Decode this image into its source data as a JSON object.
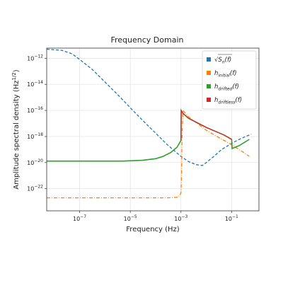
{
  "chart_data": {
    "type": "line",
    "title": "Frequency Domain",
    "xlabel": "Frequency (Hz)",
    "ylabel": "Amplitude spectral density (Hz",
    "ylabel_exponent": "1/2",
    "ylabel_suffix": ")",
    "x_scale": "log",
    "y_scale": "log",
    "xlim": [
      5e-09,
      1.2
    ],
    "ylim": [
      2e-24,
      6e-12
    ],
    "x_ticks": [
      {
        "value": 1e-07,
        "base": "10",
        "exp": "−7"
      },
      {
        "value": 1e-05,
        "base": "10",
        "exp": "−5"
      },
      {
        "value": 0.001,
        "base": "10",
        "exp": "−3"
      },
      {
        "value": 0.1,
        "base": "10",
        "exp": "−1"
      }
    ],
    "y_ticks": [
      {
        "value": 1e-12,
        "base": "10",
        "exp": "−12"
      },
      {
        "value": 1e-14,
        "base": "10",
        "exp": "−14"
      },
      {
        "value": 1e-16,
        "base": "10",
        "exp": "−16"
      },
      {
        "value": 1e-18,
        "base": "10",
        "exp": "−18"
      },
      {
        "value": 1e-20,
        "base": "10",
        "exp": "−20"
      },
      {
        "value": 1e-22,
        "base": "10",
        "exp": "−22"
      }
    ],
    "grid": true,
    "legend": "top-right",
    "series": [
      {
        "key": "sn",
        "style": "dashed",
        "color": "#1f77b4",
        "x": [
          5e-09,
          2e-08,
          5e-08,
          1e-07,
          3e-07,
          1e-06,
          3e-06,
          1e-05,
          3e-05,
          0.0001,
          0.0003,
          0.001,
          0.002,
          0.004,
          0.007,
          0.01,
          0.02,
          0.04,
          0.1,
          0.2,
          0.4,
          0.6
        ],
        "y": [
          5e-12,
          4e-12,
          2.2e-12,
          8e-13,
          1.5e-13,
          1.5e-14,
          1.8e-15,
          1.6e-16,
          1.8e-17,
          1.8e-18,
          2.2e-19,
          3e-20,
          1.2e-20,
          7e-21,
          6e-21,
          1e-20,
          3e-20,
          1e-19,
          3e-19,
          6e-19,
          1.1e-18,
          1.5e-18
        ]
      },
      {
        "key": "initial",
        "style": "dashdot",
        "color": "#ff7f0e",
        "x": [
          5e-09,
          1e-05,
          0.0003,
          0.0007,
          0.0009,
          0.001,
          0.00105,
          0.0011,
          0.0012,
          0.002,
          0.01,
          0.05,
          0.1,
          0.3,
          0.5
        ],
        "y": [
          2e-23,
          2e-23,
          2e-23,
          2.2e-23,
          3e-23,
          5e-23,
          1e-21,
          1e-18,
          1e-16,
          3.2e-17,
          3e-18,
          5e-19,
          2.3e-19,
          6e-20,
          3e-20
        ]
      },
      {
        "key": "drifted",
        "style": "solid",
        "color": "#2ca02c",
        "x": [
          5e-09,
          5e-07,
          5e-06,
          3e-05,
          0.0001,
          0.0002,
          0.0004,
          0.0007,
          0.001,
          0.00102,
          0.0012,
          0.002,
          0.01,
          0.05,
          0.1,
          0.105,
          0.2,
          0.5
        ],
        "y": [
          1.3e-20,
          1.3e-20,
          1.3e-20,
          1.5e-20,
          2e-20,
          3e-20,
          6e-20,
          1.5e-19,
          5e-19,
          1e-16,
          6e-17,
          2.5e-17,
          5e-18,
          1.3e-18,
          6e-19,
          1.2e-19,
          2e-19,
          6e-19
        ]
      },
      {
        "key": "driftless",
        "style": "solid",
        "color": "#d62728",
        "x": [
          0.001,
          0.00102,
          0.0012,
          0.002,
          0.01,
          0.05,
          0.1
        ],
        "y": [
          5e-19,
          1e-16,
          6e-17,
          2.5e-17,
          5e-18,
          1.3e-18,
          6e-19
        ]
      }
    ],
    "legend_entries": [
      {
        "key": "sn",
        "color": "#1f77b4",
        "label": "√S",
        "sub": "n",
        "suffix": "(f)",
        "sqrt": true
      },
      {
        "key": "initial",
        "color": "#ff7f0e",
        "label": "h",
        "sub": "initial",
        "suffix": "(f)",
        "sqrt": false
      },
      {
        "key": "drifted",
        "color": "#2ca02c",
        "label": "h",
        "sub": "drifted",
        "suffix": "(f)",
        "sqrt": false
      },
      {
        "key": "driftless",
        "color": "#d62728",
        "label": "h",
        "sub": "driftless",
        "suffix": "(f)",
        "sqrt": false
      }
    ]
  }
}
